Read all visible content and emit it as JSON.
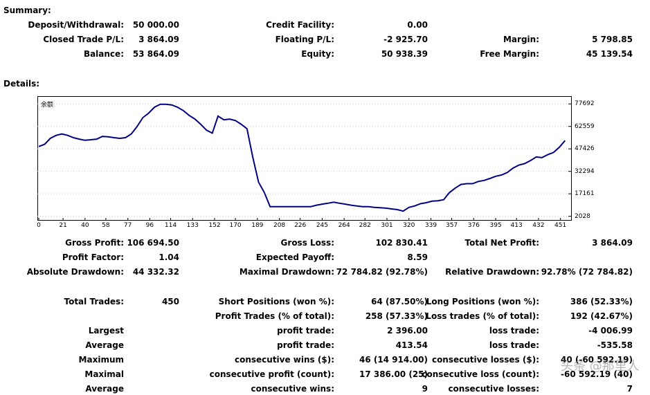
{
  "summary": {
    "title": "Summary:",
    "deposit_label": "Deposit/Withdrawal:",
    "deposit_value": "50 000.00",
    "credit_label": "Credit Facility:",
    "credit_value": "0.00",
    "closed_pl_label": "Closed Trade P/L:",
    "closed_pl_value": "3 864.09",
    "floating_pl_label": "Floating P/L:",
    "floating_pl_value": "-2 925.70",
    "margin_label": "Margin:",
    "margin_value": "5 798.85",
    "balance_label": "Balance:",
    "balance_value": "53 864.09",
    "equity_label": "Equity:",
    "equity_value": "50 938.39",
    "free_margin_label": "Free Margin:",
    "free_margin_value": "45 139.54"
  },
  "details": {
    "title": "Details:",
    "gross_profit_label": "Gross Profit:",
    "gross_profit_value": "106 694.50",
    "gross_loss_label": "Gross Loss:",
    "gross_loss_value": "102 830.41",
    "net_profit_label": "Total Net Profit:",
    "net_profit_value": "3 864.09",
    "profit_factor_label": "Profit Factor:",
    "profit_factor_value": "1.04",
    "expected_payoff_label": "Expected Payoff:",
    "expected_payoff_value": "8.59",
    "abs_drawdown_label": "Absolute Drawdown:",
    "abs_drawdown_value": "44 332.32",
    "max_drawdown_label": "Maximal Drawdown:",
    "max_drawdown_value": "72 784.82 (92.78%)",
    "rel_drawdown_label": "Relative Drawdown:",
    "rel_drawdown_value": "92.78% (72 784.82)",
    "total_trades_label": "Total Trades:",
    "total_trades_value": "450",
    "short_label": "Short Positions (won %):",
    "short_value": "64 (87.50%)",
    "long_label": "Long Positions (won %):",
    "long_value": "386 (52.33%)",
    "profit_trades_label": "Profit Trades (% of total):",
    "profit_trades_value": "258 (57.33%)",
    "loss_trades_label": "Loss trades (% of total):",
    "loss_trades_value": "192 (42.67%)",
    "largest_label": "Largest",
    "largest_profit_label": "profit trade:",
    "largest_profit_value": "2 396.00",
    "largest_loss_label": "loss trade:",
    "largest_loss_value": "-4 006.99",
    "average_label": "Average",
    "avg_profit_label": "profit trade:",
    "avg_profit_value": "413.54",
    "avg_loss_label": "loss trade:",
    "avg_loss_value": "-535.58",
    "maximum_label": "Maximum",
    "max_cons_wins_label": "consecutive wins ($):",
    "max_cons_wins_value": "46 (14 914.00)",
    "max_cons_losses_label": "consecutive losses ($):",
    "max_cons_losses_value": "40 (-60 592.19)",
    "maximal_label": "Maximal",
    "maximal_cons_profit_label": "consecutive profit (count):",
    "maximal_cons_profit_value": "17 386.00 (25)",
    "maximal_cons_loss_label": "consecutive loss (count):",
    "maximal_cons_loss_value": "-60 592.19 (40)",
    "average2_label": "Average",
    "avg_cons_wins_label": "consecutive wins:",
    "avg_cons_wins_value": "9",
    "avg_cons_losses_label": "consecutive losses:",
    "avg_cons_losses_value": "7"
  },
  "watermark": "头条 @那里人",
  "chart_data": {
    "type": "line",
    "title": "余额",
    "xlabel": "",
    "ylabel": "",
    "x_ticks": [
      "0",
      "21",
      "40",
      "58",
      "77",
      "96",
      "114",
      "133",
      "152",
      "170",
      "189",
      "208",
      "226",
      "245",
      "264",
      "282",
      "301",
      "320",
      "339",
      "357",
      "376",
      "395",
      "413",
      "432",
      "451"
    ],
    "y_ticks": [
      "77692",
      "62559",
      "47426",
      "32294",
      "17161",
      "2028"
    ],
    "xlim": [
      0,
      456
    ],
    "ylim": [
      0,
      82000
    ],
    "grid": true,
    "line_color": "#000080",
    "series": [
      {
        "x": [
          0,
          5,
          10,
          15,
          20,
          25,
          30,
          35,
          40,
          45,
          50,
          55,
          60,
          65,
          70,
          75,
          80,
          85,
          90,
          95,
          100,
          105,
          110,
          115,
          120,
          125,
          130,
          135,
          140,
          145,
          150,
          155,
          160,
          165,
          170,
          175,
          180,
          185,
          190,
          195,
          200,
          205,
          210,
          215,
          220,
          225,
          230,
          235,
          240,
          245,
          250,
          255,
          260,
          265,
          270,
          275,
          280,
          285,
          290,
          295,
          300,
          305,
          310,
          315,
          320,
          325,
          330,
          335,
          340,
          345,
          350,
          355,
          360,
          365,
          370,
          375,
          380,
          385,
          390,
          395,
          400,
          405,
          410,
          415,
          420,
          425,
          430,
          435,
          440,
          445,
          450,
          455
        ],
        "y": [
          49000,
          50500,
          54500,
          56500,
          57500,
          56500,
          55000,
          54000,
          53200,
          53600,
          54000,
          55800,
          55600,
          55000,
          54500,
          55000,
          57500,
          62500,
          68500,
          71500,
          75500,
          77500,
          77500,
          77000,
          75500,
          73200,
          70000,
          67500,
          64000,
          60000,
          58000,
          69500,
          67000,
          67500,
          66500,
          64000,
          61000,
          42000,
          25000,
          18000,
          8500,
          8500,
          8500,
          8500,
          8500,
          8500,
          8500,
          8500,
          9500,
          10200,
          10800,
          11500,
          10800,
          10200,
          9500,
          9000,
          8500,
          8500,
          8000,
          7800,
          7500,
          7000,
          6500,
          5500,
          8000,
          9000,
          10500,
          11200,
          12200,
          12500,
          13200,
          18000,
          21000,
          23500,
          24000,
          24000,
          25500,
          26200,
          27500,
          29000,
          29800,
          31500,
          34500,
          36500,
          37500,
          39500,
          42000,
          41500,
          43500,
          45000,
          48500,
          53000
        ]
      }
    ]
  }
}
